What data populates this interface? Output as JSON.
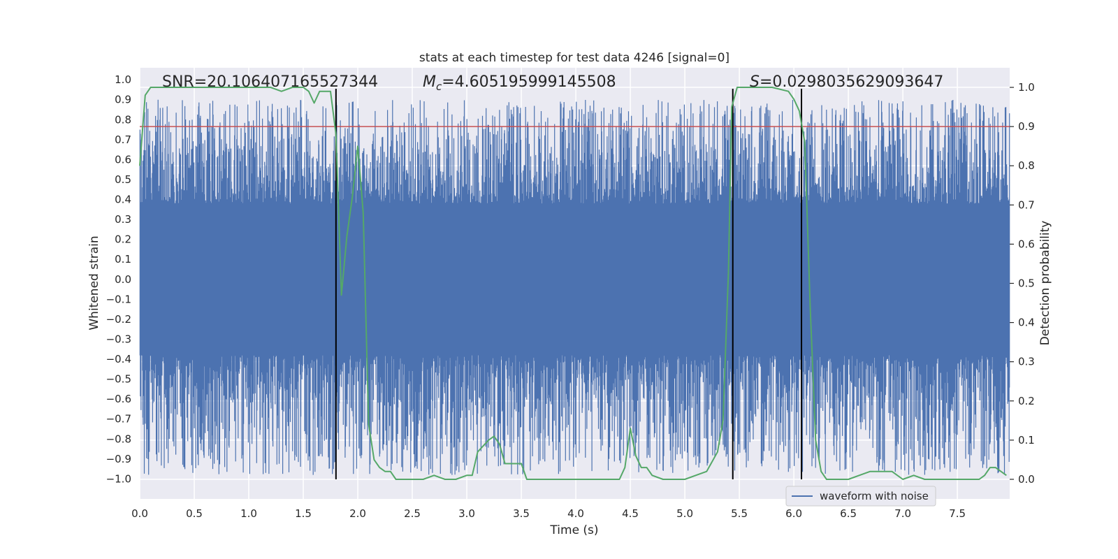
{
  "chart_data": {
    "type": "line",
    "title": "stats at each timestep for test data 4246 [signal=0]",
    "xlabel": "Time (s)",
    "ylabel_left": "Whitened strain",
    "ylabel_right": "Detection probability",
    "xlim": [
      0.0,
      7.98
    ],
    "ylim_left": [
      -1.1,
      1.06
    ],
    "ylim_right": [
      -0.05,
      1.05
    ],
    "x_ticks": [
      0.0,
      0.5,
      1.0,
      1.5,
      2.0,
      2.5,
      3.0,
      3.5,
      4.0,
      4.5,
      5.0,
      5.5,
      6.0,
      6.5,
      7.0,
      7.5
    ],
    "x_tick_labels": [
      "0.0",
      "0.5",
      "1.0",
      "1.5",
      "2.0",
      "2.5",
      "3.0",
      "3.5",
      "4.0",
      "4.5",
      "5.0",
      "5.5",
      "6.0",
      "6.5",
      "7.0",
      "7.5"
    ],
    "y_ticks_left": [
      1.0,
      0.9,
      0.8,
      0.7,
      0.6,
      0.5,
      0.4,
      0.3,
      0.2,
      0.1,
      0.0,
      -0.1,
      -0.2,
      -0.3,
      -0.4,
      -0.5,
      -0.6,
      -0.7,
      -0.8,
      -0.9,
      -1.0
    ],
    "y_tick_labels_left": [
      "1.0",
      "0.9",
      "0.8",
      "0.7",
      "0.6",
      "0.5",
      "0.4",
      "0.3",
      "0.2",
      "0.1",
      "0.0",
      "−0.1",
      "−0.2",
      "−0.3",
      "−0.4",
      "−0.5",
      "−0.6",
      "−0.7",
      "−0.8",
      "−0.9",
      "−1.0"
    ],
    "y_ticks_right": [
      1.0,
      0.9,
      0.8,
      0.7,
      0.6,
      0.5,
      0.4,
      0.3,
      0.2,
      0.1,
      0.0
    ],
    "y_tick_labels_right": [
      "1.0",
      "0.9",
      "0.8",
      "0.7",
      "0.6",
      "0.5",
      "0.4",
      "0.3",
      "0.2",
      "0.1",
      "0.0"
    ],
    "annotations": {
      "snr": "SNR=20.106407165527344",
      "mc_symbol": "M",
      "mc_subscript": "c",
      "mc_value": "=4.605195999145508",
      "s_symbol": "S",
      "s_value": "=0.0298035629093647"
    },
    "threshold": {
      "axis": "right",
      "value": 0.9,
      "color": "#c44e52"
    },
    "vertical_markers": [
      1.8,
      5.44,
      6.07
    ],
    "waveform": {
      "name": "waveform with noise",
      "color": "#4c72b0",
      "description": "dense whitened noise series, sampled at 2048 Hz",
      "sample_rate_hz": 2048,
      "core_amplitude": 0.38,
      "upper_peak_range": [
        0.42,
        0.9
      ],
      "lower_peak_range": [
        -0.98,
        -0.42
      ]
    },
    "series": [
      {
        "name": "detection probability",
        "axis": "right",
        "color": "#55a868",
        "x": [
          0.0,
          0.05,
          0.1,
          0.2,
          0.3,
          0.4,
          0.5,
          0.6,
          0.7,
          0.8,
          0.9,
          1.0,
          1.1,
          1.2,
          1.3,
          1.4,
          1.5,
          1.55,
          1.6,
          1.65,
          1.7,
          1.75,
          1.8,
          1.85,
          1.9,
          1.95,
          2.0,
          2.05,
          2.1,
          2.15,
          2.2,
          2.25,
          2.3,
          2.35,
          2.4,
          2.5,
          2.6,
          2.7,
          2.8,
          2.9,
          3.0,
          3.05,
          3.1,
          3.2,
          3.25,
          3.3,
          3.35,
          3.4,
          3.5,
          3.55,
          3.6,
          3.7,
          3.8,
          3.9,
          4.0,
          4.1,
          4.2,
          4.3,
          4.4,
          4.45,
          4.5,
          4.55,
          4.6,
          4.65,
          4.7,
          4.8,
          4.9,
          5.0,
          5.1,
          5.2,
          5.3,
          5.35,
          5.4,
          5.43,
          5.48,
          5.55,
          5.65,
          5.8,
          5.95,
          6.0,
          6.05,
          6.1,
          6.15,
          6.2,
          6.25,
          6.3,
          6.35,
          6.4,
          6.5,
          6.6,
          6.7,
          6.8,
          6.9,
          7.0,
          7.1,
          7.2,
          7.3,
          7.4,
          7.5,
          7.6,
          7.7,
          7.75,
          7.8,
          7.85,
          7.9,
          7.95
        ],
        "y": [
          0.8,
          0.98,
          1.0,
          1.0,
          1.0,
          1.0,
          1.0,
          1.0,
          1.0,
          1.0,
          1.0,
          1.0,
          1.0,
          1.0,
          0.99,
          1.0,
          1.0,
          0.99,
          0.96,
          0.99,
          0.99,
          0.99,
          0.88,
          0.47,
          0.62,
          0.72,
          0.85,
          0.68,
          0.14,
          0.05,
          0.03,
          0.02,
          0.02,
          0.0,
          0.0,
          0.0,
          0.0,
          0.01,
          0.0,
          0.0,
          0.01,
          0.01,
          0.07,
          0.1,
          0.11,
          0.09,
          0.04,
          0.04,
          0.04,
          0.0,
          0.0,
          0.0,
          0.0,
          0.0,
          0.0,
          0.0,
          0.0,
          0.0,
          0.0,
          0.03,
          0.13,
          0.06,
          0.03,
          0.03,
          0.01,
          0.0,
          0.0,
          0.0,
          0.01,
          0.02,
          0.07,
          0.15,
          0.53,
          0.95,
          1.0,
          1.0,
          1.0,
          1.0,
          0.99,
          0.97,
          0.94,
          0.86,
          0.44,
          0.1,
          0.02,
          0.0,
          0.0,
          0.0,
          0.0,
          0.01,
          0.02,
          0.02,
          0.02,
          0.0,
          0.01,
          0.0,
          0.0,
          0.0,
          0.0,
          0.0,
          0.0,
          0.01,
          0.03,
          0.03,
          0.02,
          0.01
        ]
      }
    ],
    "legend": {
      "label": "waveform with noise",
      "placement": "lower-right"
    },
    "grid": true
  }
}
